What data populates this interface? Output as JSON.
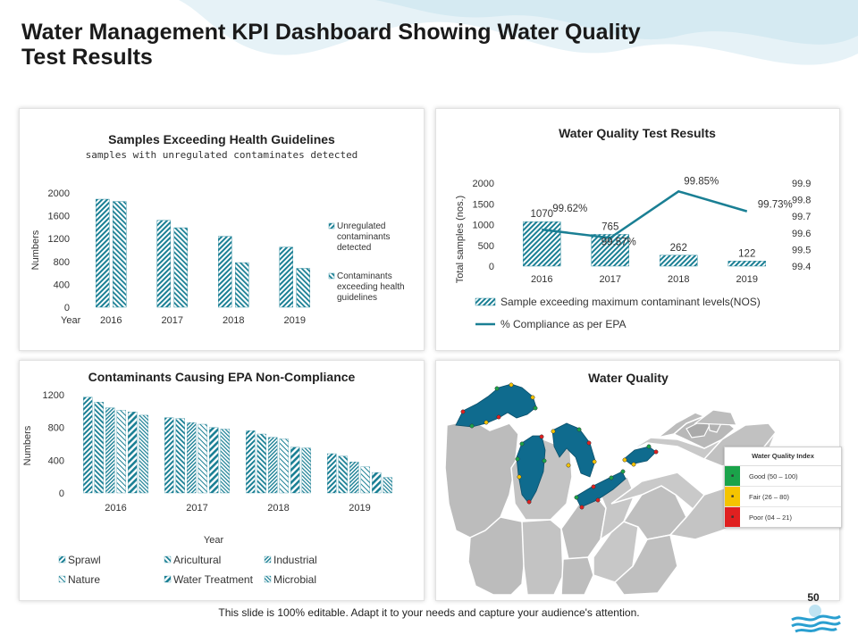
{
  "slide": {
    "title": "Water Management KPI Dashboard Showing Water Quality Test Results",
    "footer": "This slide is 100% editable. Adapt it to your needs and capture your audience's attention.",
    "page_number": "50"
  },
  "colors": {
    "teal": "#1a7f94",
    "teal_light": "#5fb0c0",
    "bg_wave": "#dfeff5"
  },
  "chart_data": [
    {
      "id": "samples-exceeding",
      "type": "bar",
      "title": "Samples Exceeding Health Guidelines",
      "subtitle": "samples with unregulated contaminates detected",
      "categories": [
        "2016",
        "2017",
        "2018",
        "2019"
      ],
      "series": [
        {
          "name": "Unregulated contaminants detected",
          "values": [
            1890,
            1520,
            1240,
            1050
          ]
        },
        {
          "name": "Contaminants exceeding health guidelines",
          "values": [
            1850,
            1390,
            780,
            680
          ]
        }
      ],
      "xlabel": "Year",
      "ylabel": "Numbers",
      "ylim": [
        0,
        2000
      ],
      "yticks": [
        0,
        400,
        800,
        1200,
        1600,
        2000
      ],
      "legend": "right"
    },
    {
      "id": "water-quality-test",
      "type": "bar+line",
      "title": "Water Quality Test Results",
      "categories": [
        "2016",
        "2017",
        "2018",
        "2019"
      ],
      "bar_series": {
        "name": "Sample exceeding maximum contaminant levels(NOS)",
        "values": [
          1070,
          765,
          262,
          122
        ],
        "labels": [
          "1070",
          "765",
          "262",
          "122"
        ]
      },
      "line_series": {
        "name": "% Compliance as per EPA",
        "values": [
          99.62,
          99.57,
          99.85,
          99.73
        ],
        "labels": [
          "99.62%",
          "99.57%",
          "99.85%",
          "99.73%"
        ]
      },
      "ylabel": "Total samples (nos.)",
      "ylim": [
        0,
        2000
      ],
      "yticks": [
        0,
        500,
        1000,
        1500,
        2000
      ],
      "y2lim": [
        99.4,
        99.9
      ],
      "y2ticks": [
        "99.4",
        "99.5",
        "99.6",
        "99.7",
        "99.8",
        "99.9"
      ],
      "legend": "bottom"
    },
    {
      "id": "epa-noncompliance",
      "type": "bar",
      "title": "Contaminants Causing EPA Non-Compliance",
      "categories": [
        "2016",
        "2017",
        "2018",
        "2019"
      ],
      "series": [
        {
          "name": "Sprawl",
          "values": [
            1170,
            920,
            760,
            480
          ]
        },
        {
          "name": "Aricultural",
          "values": [
            1110,
            910,
            720,
            450
          ]
        },
        {
          "name": "Industrial",
          "values": [
            1040,
            860,
            680,
            380
          ]
        },
        {
          "name": "Nature",
          "values": [
            1010,
            840,
            660,
            320
          ]
        },
        {
          "name": "Water Treatment",
          "values": [
            990,
            800,
            560,
            250
          ]
        },
        {
          "name": "Microbial",
          "values": [
            950,
            780,
            550,
            190
          ]
        }
      ],
      "xlabel": "Year",
      "ylabel": "Numbers",
      "ylim": [
        0,
        1200
      ],
      "yticks": [
        0,
        400,
        800,
        1200
      ],
      "legend": "bottom"
    }
  ],
  "water_quality": {
    "title": "Water Quality",
    "index_title": "Water Quality Index",
    "levels": [
      {
        "label": "Good (50 – 100)",
        "color": "#1aa34a"
      },
      {
        "label": "Fair (26 – 80)",
        "color": "#f5c400"
      },
      {
        "label": "Poor (04 – 21)",
        "color": "#e02020"
      }
    ]
  }
}
